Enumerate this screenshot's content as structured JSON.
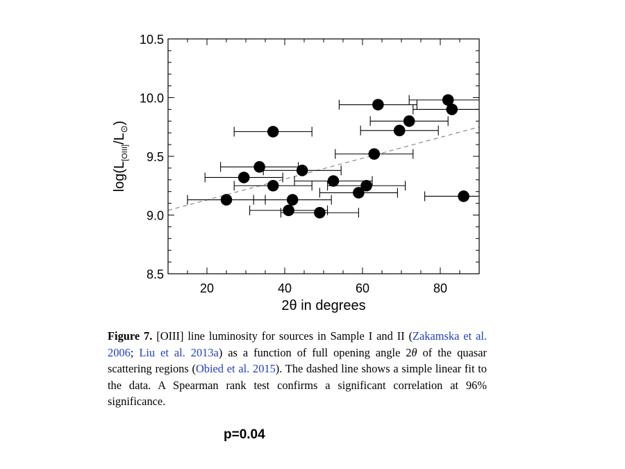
{
  "chart_data": {
    "type": "scatter",
    "xlabel_parts": [
      "2",
      "θ",
      " in degrees"
    ],
    "ylabel_parts": [
      "log(L",
      "[OIII]",
      "/L",
      "⊙",
      ")"
    ],
    "xlim": [
      10,
      90
    ],
    "ylim": [
      8.5,
      10.5
    ],
    "xticks": [
      20,
      40,
      60,
      80
    ],
    "xtick_labels": [
      "20",
      "40",
      "60",
      "80"
    ],
    "yticks": [
      8.5,
      9.0,
      9.5,
      10.0,
      10.5
    ],
    "ytick_labels": [
      "8.5",
      "9.0",
      "9.5",
      "10.0",
      "10.5"
    ],
    "grid": false,
    "points": [
      {
        "x": 25.0,
        "y": 9.13,
        "xerr_low": 15.0,
        "xerr_high": 35.0
      },
      {
        "x": 29.5,
        "y": 9.32,
        "xerr_low": 19.5,
        "xerr_high": 39.5
      },
      {
        "x": 33.5,
        "y": 9.41,
        "xerr_low": 23.5,
        "xerr_high": 43.5
      },
      {
        "x": 37.0,
        "y": 9.71,
        "xerr_low": 27.0,
        "xerr_high": 47.0
      },
      {
        "x": 37.0,
        "y": 9.25,
        "xerr_low": 27.0,
        "xerr_high": 47.0
      },
      {
        "x": 41.0,
        "y": 9.04,
        "xerr_low": 31.0,
        "xerr_high": 51.0
      },
      {
        "x": 42.0,
        "y": 9.13,
        "xerr_low": 32.0,
        "xerr_high": 52.0
      },
      {
        "x": 44.5,
        "y": 9.38,
        "xerr_low": 34.5,
        "xerr_high": 54.5
      },
      {
        "x": 49.0,
        "y": 9.02,
        "xerr_low": 39.0,
        "xerr_high": 59.0
      },
      {
        "x": 52.5,
        "y": 9.29,
        "xerr_low": 42.5,
        "xerr_high": 62.5
      },
      {
        "x": 59.0,
        "y": 9.19,
        "xerr_low": 49.0,
        "xerr_high": 69.0
      },
      {
        "x": 61.0,
        "y": 9.25,
        "xerr_low": 51.0,
        "xerr_high": 71.0
      },
      {
        "x": 63.0,
        "y": 9.52,
        "xerr_low": 53.0,
        "xerr_high": 73.0
      },
      {
        "x": 64.0,
        "y": 9.94,
        "xerr_low": 54.0,
        "xerr_high": 74.0
      },
      {
        "x": 69.5,
        "y": 9.72,
        "xerr_low": 59.5,
        "xerr_high": 79.5
      },
      {
        "x": 72.0,
        "y": 9.8,
        "xerr_low": 62.0,
        "xerr_high": 82.0
      },
      {
        "x": 82.0,
        "y": 9.98,
        "xerr_low": 72.0,
        "xerr_high": 90.0
      },
      {
        "x": 83.0,
        "y": 9.9,
        "xerr_low": 73.0,
        "xerr_high": 90.0
      },
      {
        "x": 86.0,
        "y": 9.16,
        "xerr_low": 76.0,
        "xerr_high": 90.0
      }
    ],
    "fit_line": {
      "style": "dashed",
      "color": "#888888",
      "x": [
        10,
        90
      ],
      "y": [
        9.04,
        9.75
      ]
    },
    "marker_color": "#000000"
  },
  "caption": {
    "figure_label": "Figure 7.",
    "text_1": " [OIII] line luminosity for sources in Sample I and II (",
    "cite_1": "Zakamska et al. 2006",
    "sep_1": "; ",
    "cite_2": "Liu et al. 2013a",
    "text_2": ") as a function of full opening angle 2",
    "theta": "θ",
    "text_3": " of the quasar scattering regions (",
    "cite_3": "Obied et al. 2015",
    "text_4": "). The dashed line shows a simple linear fit to the data. A Spearman rank test confirms a significant correlation at 96% significance.",
    "cite_color": "#1f3fbf"
  },
  "annotation": {
    "pvalue": "p=0.04"
  }
}
